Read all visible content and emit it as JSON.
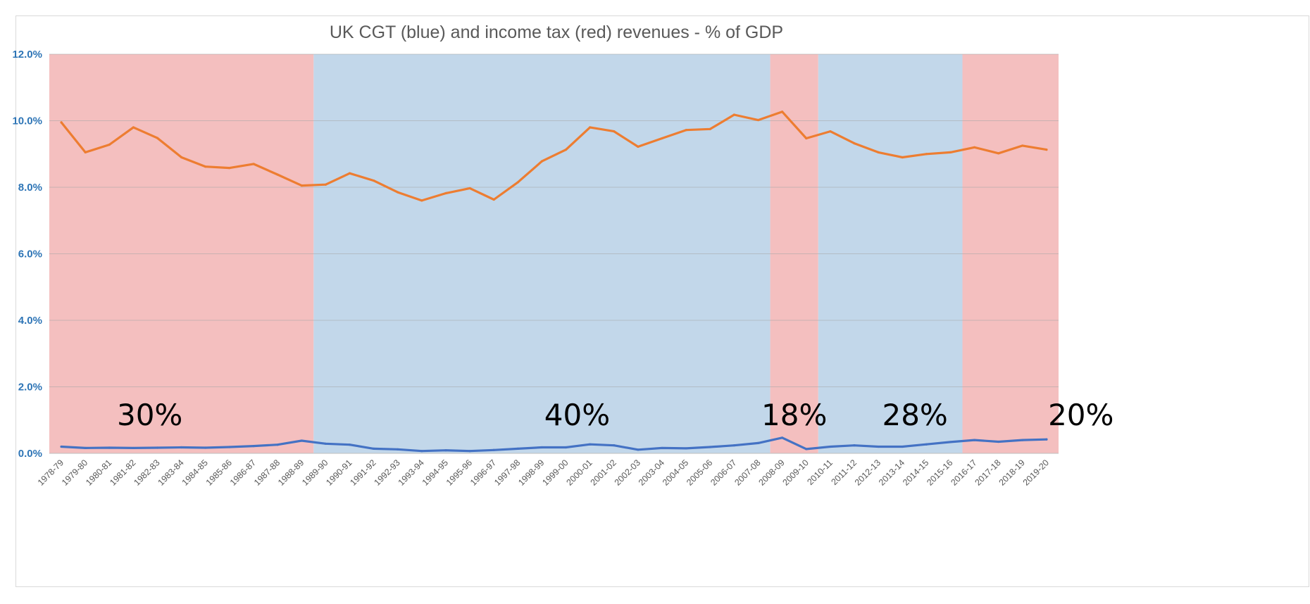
{
  "chart_data": {
    "type": "line",
    "title": "UK CGT (blue) and income tax (red) revenues - % of GDP",
    "xlabel": "",
    "ylabel": "",
    "ylim": [
      0,
      12
    ],
    "y_ticks": [
      "0.0%",
      "2.0%",
      "4.0%",
      "6.0%",
      "8.0%",
      "10.0%",
      "12.0%"
    ],
    "grid": true,
    "categories": [
      "1978-79",
      "1979-80",
      "1980-81",
      "1981-82",
      "1982-83",
      "1983-84",
      "1984-85",
      "1985-86",
      "1986-87",
      "1987-88",
      "1988-89",
      "1989-90",
      "1990-91",
      "1991-92",
      "1992-93",
      "1993-94",
      "1994-95",
      "1995-96",
      "1996-97",
      "1997-98",
      "1998-99",
      "1999-00",
      "2000-01",
      "2001-02",
      "2002-03",
      "2003-04",
      "2004-05",
      "2005-06",
      "2006-07",
      "2007-08",
      "2008-09",
      "2009-10",
      "2010-11",
      "2011-12",
      "2012-13",
      "2013-14",
      "2014-15",
      "2015-16",
      "2016-17",
      "2017-18",
      "2018-19",
      "2019-20"
    ],
    "series": [
      {
        "color": "#ed7d31",
        "values": [
          9.95,
          9.05,
          9.28,
          9.8,
          9.48,
          8.9,
          8.62,
          8.58,
          8.7,
          8.38,
          8.05,
          8.08,
          8.42,
          8.2,
          7.85,
          7.6,
          7.82,
          7.97,
          7.63,
          8.15,
          8.78,
          9.13,
          9.8,
          9.68,
          9.22,
          9.47,
          9.72,
          9.75,
          10.18,
          10.02,
          10.27,
          9.47,
          9.68,
          9.32,
          9.05,
          8.9,
          9.0,
          9.05,
          9.2,
          9.02,
          9.25,
          9.13
        ]
      },
      {
        "color": "#4472c4",
        "values": [
          0.2,
          0.16,
          0.17,
          0.16,
          0.17,
          0.18,
          0.17,
          0.19,
          0.22,
          0.26,
          0.38,
          0.29,
          0.26,
          0.14,
          0.12,
          0.07,
          0.09,
          0.07,
          0.1,
          0.14,
          0.18,
          0.18,
          0.27,
          0.24,
          0.11,
          0.16,
          0.15,
          0.19,
          0.24,
          0.31,
          0.47,
          0.13,
          0.2,
          0.24,
          0.2,
          0.2,
          0.27,
          0.34,
          0.4,
          0.35,
          0.4,
          0.42
        ]
      }
    ],
    "bands": [
      {
        "label": "30%",
        "from": "1978-79",
        "to": "1988-89",
        "color": "#f4bfbf"
      },
      {
        "label": "40%",
        "from": "1989-90",
        "to": "2007-08",
        "color": "#c2d7ea"
      },
      {
        "label": "18%",
        "from": "2008-09",
        "to": "2009-10",
        "color": "#f4bfbf"
      },
      {
        "label": "28%",
        "from": "2010-11",
        "to": "2015-16",
        "color": "#c2d7ea"
      },
      {
        "label": "20%",
        "from": "2016-17",
        "to": "2019-20",
        "color": "#f4bfbf"
      }
    ]
  }
}
